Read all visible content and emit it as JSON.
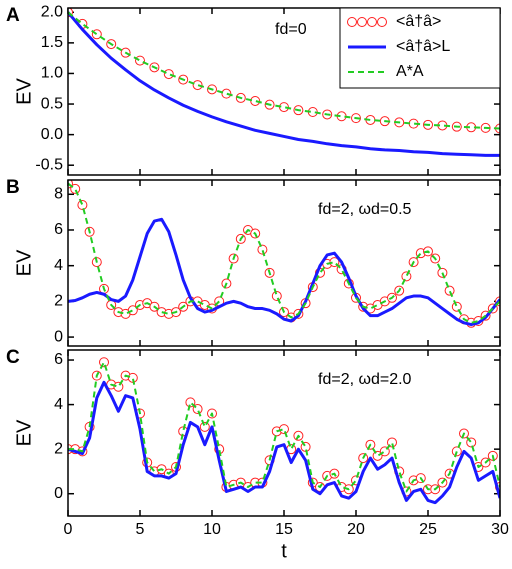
{
  "chart_data": [
    {
      "type": "line",
      "panel_label": "A",
      "y_label": "EV",
      "annotation": "fd=0",
      "legend": "upper right",
      "xlim": [
        0,
        30
      ],
      "ylim": [
        -0.66,
        2.07
      ],
      "yticks": [
        {
          "value": 2,
          "label": "2.0"
        },
        1.5,
        {
          "value": 1,
          "label": "1.0"
        },
        0.5,
        {
          "value": 0,
          "label": "0.0"
        },
        -0.5
      ],
      "x": [
        0,
        1,
        2,
        3,
        4,
        5,
        6,
        7,
        8,
        9,
        10,
        11,
        12,
        13,
        14,
        15,
        16,
        17,
        18,
        19,
        20,
        21,
        22,
        23,
        24,
        25,
        26,
        27,
        28,
        29,
        30
      ],
      "series": [
        {
          "name": "<â†â>",
          "color": "#ff2020",
          "style": "circles",
          "values": [
            2.0,
            1.81,
            1.64,
            1.48,
            1.34,
            1.21,
            1.1,
            0.99,
            0.9,
            0.81,
            0.74,
            0.67,
            0.6,
            0.55,
            0.49,
            0.45,
            0.4,
            0.37,
            0.33,
            0.3,
            0.27,
            0.24,
            0.22,
            0.2,
            0.18,
            0.16,
            0.15,
            0.13,
            0.12,
            0.11,
            0.1
          ]
        },
        {
          "name": "<â†â>L",
          "color": "#1a1aff",
          "style": "solid",
          "values": [
            2.0,
            1.72,
            1.47,
            1.25,
            1.06,
            0.88,
            0.73,
            0.6,
            0.48,
            0.38,
            0.29,
            0.21,
            0.14,
            0.07,
            0.02,
            -0.03,
            -0.08,
            -0.11,
            -0.15,
            -0.18,
            -0.2,
            -0.23,
            -0.25,
            -0.26,
            -0.28,
            -0.29,
            -0.31,
            -0.32,
            -0.33,
            -0.34,
            -0.34
          ]
        },
        {
          "name": "A*A",
          "color": "#22cc22",
          "style": "dashed",
          "values": [
            2.0,
            1.81,
            1.64,
            1.48,
            1.34,
            1.21,
            1.1,
            0.99,
            0.9,
            0.81,
            0.74,
            0.67,
            0.6,
            0.55,
            0.49,
            0.45,
            0.4,
            0.37,
            0.33,
            0.3,
            0.27,
            0.24,
            0.22,
            0.2,
            0.18,
            0.16,
            0.15,
            0.13,
            0.12,
            0.11,
            0.1
          ]
        }
      ]
    },
    {
      "type": "line",
      "panel_label": "B",
      "y_label": "EV",
      "annotation": "fd=2, ωd=0.5",
      "xlim": [
        0,
        30
      ],
      "ylim": [
        -0.5,
        8.8
      ],
      "yticks": [
        0,
        2,
        4,
        6,
        8
      ],
      "x": [
        0,
        0.5,
        1,
        1.5,
        2,
        2.5,
        3,
        3.5,
        4,
        4.5,
        5,
        5.5,
        6,
        6.5,
        7,
        7.5,
        8,
        8.5,
        9,
        9.5,
        10,
        10.5,
        11,
        11.5,
        12,
        12.5,
        13,
        13.5,
        14,
        14.5,
        15,
        15.5,
        16,
        16.5,
        17,
        17.5,
        18,
        18.5,
        19,
        19.5,
        20,
        20.5,
        21,
        21.5,
        22,
        22.5,
        23,
        23.5,
        24,
        24.5,
        25,
        25.5,
        26,
        26.5,
        27,
        27.5,
        28,
        28.5,
        29,
        29.5,
        30
      ],
      "series": [
        {
          "name": "<â†â>",
          "color": "#ff2020",
          "style": "circles",
          "values": [
            8.6,
            8.3,
            7.4,
            5.9,
            4.2,
            2.7,
            1.8,
            1.4,
            1.3,
            1.5,
            1.8,
            1.9,
            1.7,
            1.4,
            1.3,
            1.4,
            1.7,
            2.0,
            2.0,
            1.8,
            1.6,
            2.0,
            3.0,
            4.4,
            5.5,
            6.0,
            5.8,
            4.9,
            3.6,
            2.3,
            1.4,
            1.1,
            1.3,
            1.9,
            2.8,
            3.6,
            4.1,
            4.2,
            3.8,
            3.0,
            2.2,
            1.7,
            1.6,
            1.8,
            2.0,
            2.2,
            2.6,
            3.4,
            4.2,
            4.7,
            4.8,
            4.4,
            3.6,
            2.6,
            1.7,
            1.0,
            0.8,
            0.9,
            1.2,
            1.6,
            2.0
          ]
        },
        {
          "name": "<â†â>L",
          "color": "#1a1aff",
          "style": "solid",
          "values": [
            2.0,
            2.05,
            2.2,
            2.4,
            2.5,
            2.4,
            2.1,
            2.0,
            2.3,
            3.2,
            4.5,
            5.8,
            6.5,
            6.6,
            5.9,
            4.6,
            3.2,
            2.2,
            1.6,
            1.4,
            1.5,
            1.7,
            1.9,
            2.0,
            1.9,
            1.7,
            1.6,
            1.6,
            1.5,
            1.3,
            1.0,
            0.9,
            1.2,
            2.0,
            3.0,
            4.0,
            4.6,
            4.7,
            4.2,
            3.3,
            2.3,
            1.6,
            1.2,
            1.2,
            1.4,
            1.6,
            1.9,
            2.2,
            2.3,
            2.3,
            2.2,
            1.9,
            1.6,
            1.3,
            1.0,
            0.8,
            0.7,
            0.8,
            1.1,
            1.6,
            2.1
          ]
        },
        {
          "name": "A*A",
          "color": "#22cc22",
          "style": "dashed",
          "values": [
            8.6,
            8.3,
            7.4,
            5.9,
            4.2,
            2.7,
            1.8,
            1.4,
            1.3,
            1.5,
            1.8,
            1.9,
            1.7,
            1.4,
            1.3,
            1.4,
            1.7,
            2.0,
            2.0,
            1.8,
            1.6,
            2.0,
            3.0,
            4.4,
            5.5,
            6.0,
            5.8,
            4.9,
            3.6,
            2.3,
            1.4,
            1.1,
            1.3,
            1.9,
            2.8,
            3.6,
            4.1,
            4.2,
            3.8,
            3.0,
            2.2,
            1.7,
            1.6,
            1.8,
            2.0,
            2.2,
            2.6,
            3.4,
            4.2,
            4.7,
            4.8,
            4.4,
            3.6,
            2.6,
            1.7,
            1.0,
            0.8,
            0.9,
            1.2,
            1.6,
            2.0
          ]
        }
      ]
    },
    {
      "type": "line",
      "panel_label": "C",
      "y_label": "EV",
      "x_label": "t",
      "annotation": "fd=2, ωd=2.0",
      "xlim": [
        0,
        30
      ],
      "ylim": [
        -1.0,
        6.45
      ],
      "yticks": [
        0,
        2,
        4,
        6
      ],
      "xticks": [
        0,
        5,
        10,
        15,
        20,
        25,
        30
      ],
      "x": [
        0,
        0.5,
        1,
        1.5,
        2,
        2.5,
        3,
        3.5,
        4,
        4.5,
        5,
        5.5,
        6,
        6.5,
        7,
        7.5,
        8,
        8.5,
        9,
        9.5,
        10,
        10.5,
        11,
        11.5,
        12,
        12.5,
        13,
        13.5,
        14,
        14.5,
        15,
        15.5,
        16,
        16.5,
        17,
        17.5,
        18,
        18.5,
        19,
        19.5,
        20,
        20.5,
        21,
        21.5,
        22,
        22.5,
        23,
        23.5,
        24,
        24.5,
        25,
        25.5,
        26,
        26.5,
        27,
        27.5,
        28,
        28.5,
        29,
        29.5,
        30
      ],
      "series": [
        {
          "name": "<â†â>",
          "color": "#ff2020",
          "style": "circles",
          "values": [
            2.0,
            2.0,
            1.9,
            3.0,
            5.3,
            5.9,
            4.9,
            4.8,
            5.3,
            5.2,
            3.6,
            1.4,
            1.0,
            1.1,
            0.9,
            1.2,
            2.8,
            4.1,
            3.8,
            3.0,
            3.6,
            2.0,
            0.3,
            0.4,
            0.5,
            0.3,
            0.5,
            0.5,
            1.5,
            2.8,
            2.9,
            2.0,
            2.6,
            2.1,
            0.5,
            0.3,
            0.8,
            0.9,
            0.3,
            0.2,
            0.6,
            1.6,
            2.2,
            1.7,
            1.9,
            2.3,
            1.0,
            0.1,
            0.6,
            0.7,
            0.2,
            0.2,
            0.5,
            0.9,
            1.9,
            2.7,
            2.3,
            1.2,
            1.4,
            1.7,
            0.3
          ]
        },
        {
          "name": "<â†â>L",
          "color": "#1a1aff",
          "style": "solid",
          "values": [
            2.0,
            1.9,
            1.8,
            2.5,
            4.3,
            5.0,
            4.4,
            3.7,
            4.4,
            4.3,
            2.9,
            1.0,
            0.8,
            0.8,
            0.7,
            0.9,
            2.2,
            3.2,
            3.0,
            2.2,
            3.0,
            1.5,
            0.1,
            0.2,
            0.3,
            0.1,
            0.3,
            0.3,
            1.0,
            2.1,
            2.2,
            1.4,
            2.0,
            1.5,
            0.2,
            0.0,
            0.4,
            0.5,
            -0.1,
            -0.2,
            0.1,
            1.0,
            1.6,
            1.1,
            1.3,
            1.6,
            0.5,
            -0.3,
            0.1,
            0.2,
            -0.3,
            -0.4,
            -0.1,
            0.3,
            1.2,
            1.9,
            1.6,
            0.6,
            0.8,
            1.0,
            -0.2
          ]
        },
        {
          "name": "A*A",
          "color": "#22cc22",
          "style": "dashed",
          "values": [
            2.0,
            2.0,
            1.9,
            3.0,
            5.3,
            5.9,
            4.9,
            4.8,
            5.3,
            5.2,
            3.6,
            1.4,
            1.0,
            1.1,
            0.9,
            1.2,
            2.8,
            4.1,
            3.8,
            3.0,
            3.6,
            2.0,
            0.3,
            0.4,
            0.5,
            0.3,
            0.5,
            0.5,
            1.5,
            2.8,
            2.9,
            2.0,
            2.6,
            2.1,
            0.5,
            0.3,
            0.8,
            0.9,
            0.3,
            0.2,
            0.6,
            1.6,
            2.2,
            1.7,
            1.9,
            2.3,
            1.0,
            0.1,
            0.6,
            0.7,
            0.2,
            0.2,
            0.5,
            0.9,
            1.9,
            2.7,
            2.3,
            1.2,
            1.4,
            1.7,
            0.3
          ]
        }
      ]
    }
  ]
}
